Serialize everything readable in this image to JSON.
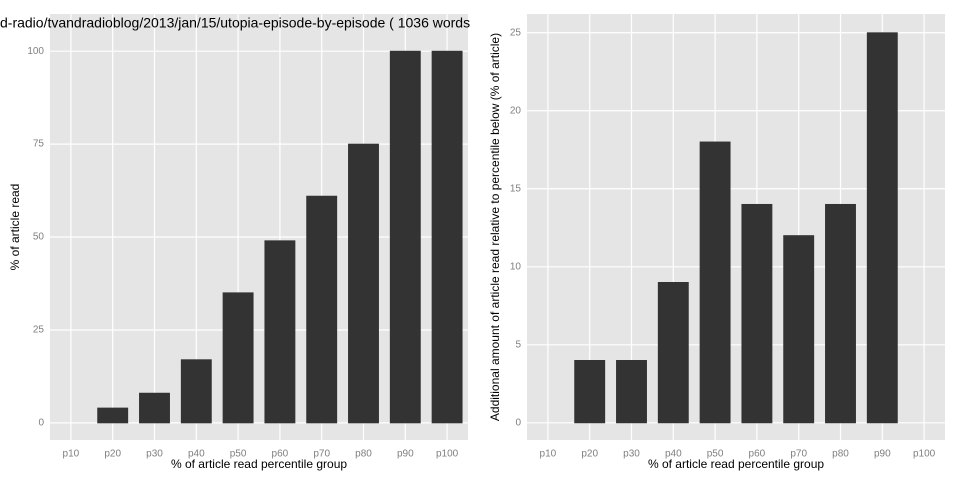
{
  "chart_data": [
    {
      "type": "bar",
      "title": "d-radio/tvandradioblog/2013/jan/15/utopia-episode-by-episode ( 1036 words",
      "x_label": "% of article read percentile group",
      "y_label": "% of article read",
      "categories": [
        "p10",
        "p20",
        "p30",
        "p40",
        "p50",
        "p60",
        "p70",
        "p80",
        "p90",
        "p100"
      ],
      "values": [
        0,
        4,
        8,
        17,
        35,
        49,
        61,
        75,
        100,
        100
      ],
      "color": "#333333",
      "ylim": [
        -4.6,
        110
      ],
      "yticks": [
        0,
        25,
        50,
        75,
        100
      ],
      "grid": true
    },
    {
      "type": "bar",
      "x_label": "% of article read percentile group",
      "y_label": "Additional amount of article read relative to percentile below (% of article)",
      "categories": [
        "p10",
        "p20",
        "p30",
        "p40",
        "p50",
        "p60",
        "p70",
        "p80",
        "p90",
        "p100"
      ],
      "values": [
        0,
        4,
        4,
        9,
        18,
        14,
        12,
        14,
        25,
        0
      ],
      "color": "#333333",
      "ylim": [
        -1.1,
        26.2
      ],
      "yticks": [
        0,
        5,
        10,
        15,
        20,
        25
      ],
      "grid": true
    }
  ]
}
